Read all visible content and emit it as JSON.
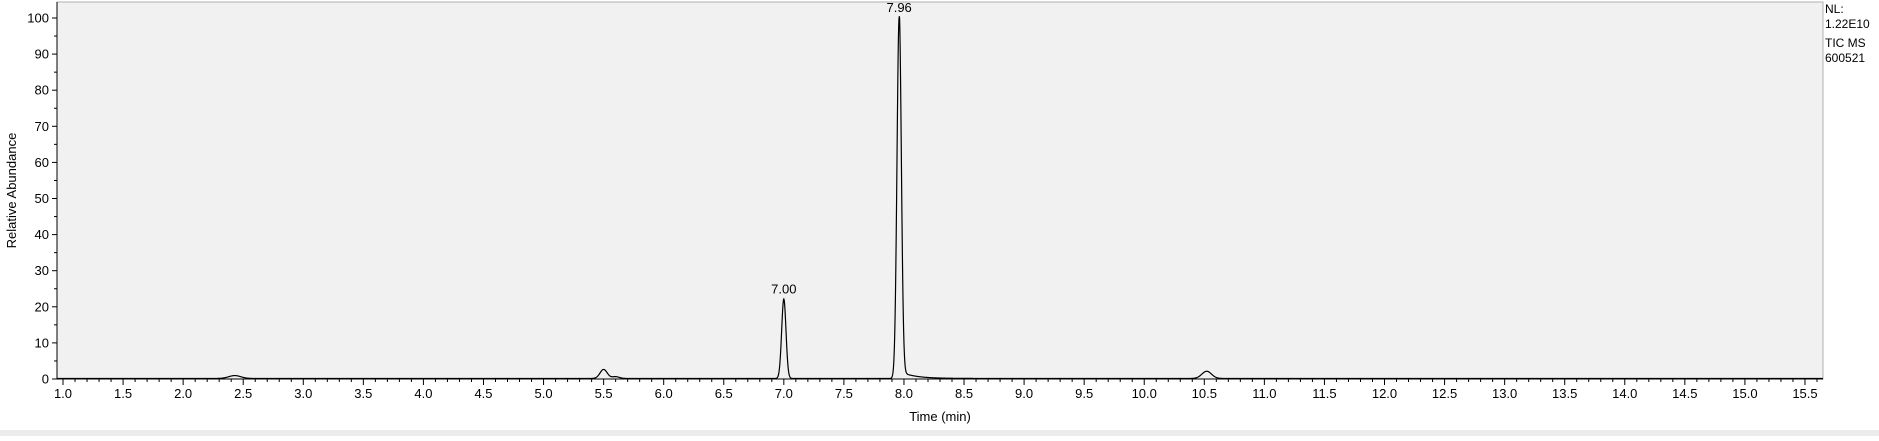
{
  "info": {
    "nl_label": "NL:",
    "nl_value": "1.22E10",
    "scan_filter": "TIC  MS",
    "sample_id": "600521"
  },
  "chart_data": {
    "type": "line",
    "xlabel": "Time (min)",
    "ylabel": "Relative Abundance",
    "xlim": [
      0.95,
      15.65
    ],
    "ylim": [
      0,
      100
    ],
    "x_ticks": [
      "1.0",
      "1.5",
      "2.0",
      "2.5",
      "3.0",
      "3.5",
      "4.0",
      "4.5",
      "5.0",
      "5.5",
      "6.0",
      "6.5",
      "7.0",
      "7.5",
      "8.0",
      "8.5",
      "9.0",
      "9.5",
      "10.0",
      "10.5",
      "11.0",
      "11.5",
      "12.0",
      "12.5",
      "13.0",
      "13.5",
      "14.0",
      "14.5",
      "15.0",
      "15.5"
    ],
    "y_ticks": [
      "0",
      "10",
      "20",
      "30",
      "40",
      "50",
      "60",
      "70",
      "80",
      "90",
      "100"
    ],
    "grid": false,
    "line_color": "#000000",
    "plot_background": "#f1f1f1",
    "peaks": [
      {
        "rt": 2.43,
        "height": 0.8,
        "width": 0.05
      },
      {
        "rt": 5.5,
        "height": 2.5,
        "width": 0.03
      },
      {
        "rt": 5.6,
        "height": 0.5,
        "width": 0.03
      },
      {
        "rt": 7.0,
        "height": 22,
        "width": 0.018
      },
      {
        "rt": 7.96,
        "height": 100,
        "width": 0.018
      },
      {
        "rt": 10.52,
        "height": 2.0,
        "width": 0.04
      }
    ],
    "peak_labels": [
      {
        "x": 7.0,
        "y": 22,
        "text": "7.00"
      },
      {
        "x": 7.96,
        "y": 100,
        "text": "7.96"
      }
    ]
  }
}
